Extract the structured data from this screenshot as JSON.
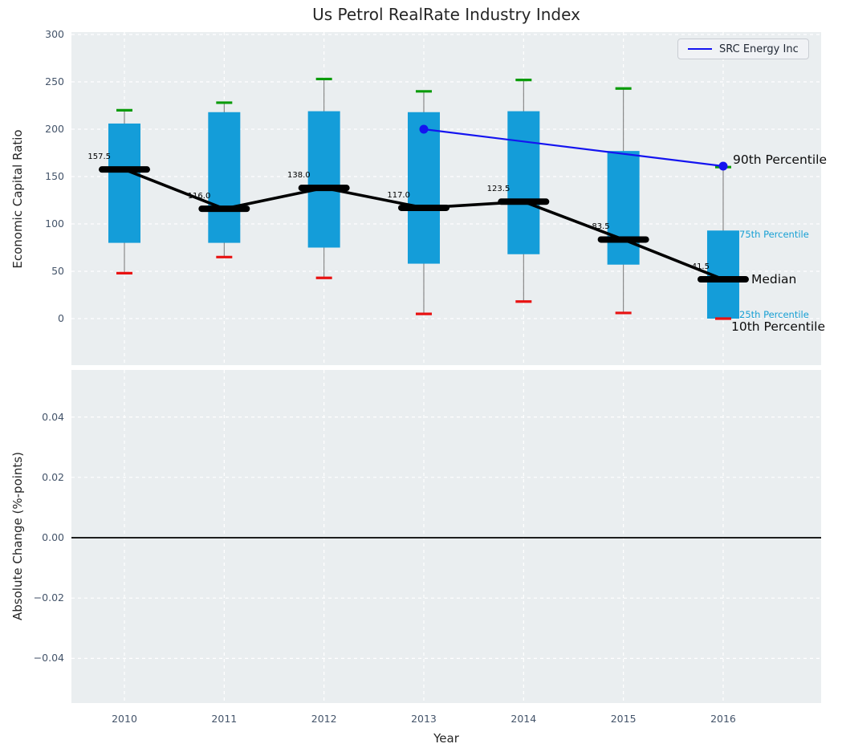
{
  "title": "Us Petrol RealRate Industry Index",
  "legend": {
    "label": "SRC Energy Inc"
  },
  "annotations": {
    "p90": "90th Percentile",
    "p75": "75th Percentile",
    "median": "Median",
    "p25": "25th Percentile",
    "p10": "10th Percentile"
  },
  "colors": {
    "box_fill": "#149dd9",
    "p90_cap": "#0a9b0a",
    "p10_cap": "#e81212",
    "median": "#000000",
    "overlay_line": "#1414f0",
    "percentile_text_cyan": "#18a0d4",
    "axes_bg": "#eaeef0",
    "grid": "#ffffff",
    "tick_label": "#44546a",
    "whisker": "#808080",
    "zero_line": "#000000"
  },
  "chart_data": [
    {
      "type": "box",
      "ylabel": "Economic Capital Ratio",
      "ylim": [
        -50,
        301
      ],
      "grid": true,
      "yticks": [
        {
          "v": 0,
          "label": "0"
        },
        {
          "v": 50,
          "label": "50"
        },
        {
          "v": 100,
          "label": "100"
        },
        {
          "v": 150,
          "label": "150"
        },
        {
          "v": 200,
          "label": "200"
        },
        {
          "v": 250,
          "label": "250"
        },
        {
          "v": 300,
          "label": "300"
        }
      ],
      "categories": [
        "2010",
        "2011",
        "2012",
        "2013",
        "2014",
        "2015",
        "2016"
      ],
      "boxes": [
        {
          "year": "2010",
          "p90": 220,
          "p75": 206,
          "median": 157.5,
          "p25": 80,
          "p10": 48,
          "median_label": "157.5"
        },
        {
          "year": "2011",
          "p90": 228,
          "p75": 218,
          "median": 116.0,
          "p25": 80,
          "p10": 65,
          "median_label": "116.0"
        },
        {
          "year": "2012",
          "p90": 253,
          "p75": 219,
          "median": 138.0,
          "p25": 75,
          "p10": 43,
          "median_label": "138.0"
        },
        {
          "year": "2013",
          "p90": 240,
          "p75": 218,
          "median": 117.0,
          "p25": 58,
          "p10": 5,
          "median_label": "117.0"
        },
        {
          "year": "2014",
          "p90": 252,
          "p75": 219,
          "median": 123.5,
          "p25": 68,
          "p10": 18,
          "median_label": "123.5"
        },
        {
          "year": "2015",
          "p90": 243,
          "p75": 177,
          "median": 83.5,
          "p25": 57,
          "p10": 6,
          "median_label": "83.5"
        },
        {
          "year": "2016",
          "p90": 160,
          "p75": 93,
          "median": 41.5,
          "p25": 0,
          "p10": 0,
          "median_label": "41.5"
        }
      ],
      "overlay_line": {
        "name": "SRC Energy Inc",
        "points": [
          {
            "year": "2013",
            "value": 200
          },
          {
            "year": "2016",
            "value": 161
          }
        ]
      },
      "legend_position": "upper right"
    },
    {
      "type": "line",
      "ylabel": "Absolute Change (%-points)",
      "xlabel": "Year",
      "ylim": [
        -0.0565,
        0.0557
      ],
      "grid": true,
      "yticks": [
        {
          "v": 0.04,
          "label": "0.04"
        },
        {
          "v": 0.02,
          "label": "0.02"
        },
        {
          "v": 0.0,
          "label": "0.00"
        },
        {
          "v": -0.02,
          "label": "−0.02"
        },
        {
          "v": -0.04,
          "label": "−0.04"
        }
      ],
      "categories": [
        "2010",
        "2011",
        "2012",
        "2013",
        "2014",
        "2015",
        "2016"
      ],
      "series": [],
      "zero_line": 0.0
    }
  ]
}
